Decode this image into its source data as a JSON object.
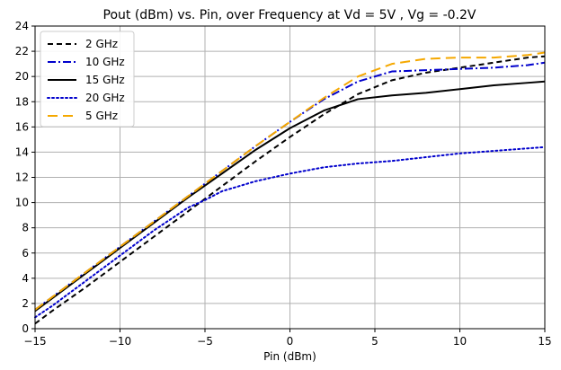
{
  "chart_data": {
    "type": "line",
    "title": "Pout (dBm) vs. Pin, over Frequency at Vd = 5V , Vg = -0.2V",
    "xlabel": "Pin (dBm)",
    "ylabel": "",
    "xlim": [
      -15,
      15
    ],
    "ylim": [
      0,
      24
    ],
    "xticks": [
      -15,
      -10,
      -5,
      0,
      5,
      10,
      15
    ],
    "xtick_labels": [
      "−15",
      "−10",
      "−5",
      "0",
      "5",
      "10",
      "15"
    ],
    "yticks": [
      0,
      2,
      4,
      6,
      8,
      10,
      12,
      14,
      16,
      18,
      20,
      22,
      24
    ],
    "ytick_labels": [
      "0",
      "2",
      "4",
      "6",
      "8",
      "10",
      "12",
      "14",
      "16",
      "18",
      "20",
      "22",
      "24"
    ],
    "grid": true,
    "legend_position": "top-left",
    "series": [
      {
        "name": "2 GHz",
        "color": "#000000",
        "style": "dashed",
        "x": [
          -15,
          -14,
          -12,
          -10,
          -8,
          -6,
          -4,
          -2,
          0,
          2,
          4,
          6,
          8,
          10,
          12,
          14,
          15
        ],
        "y": [
          0.4,
          1.4,
          3.3,
          5.3,
          7.3,
          9.3,
          11.3,
          13.3,
          15.2,
          17.0,
          18.6,
          19.7,
          20.3,
          20.7,
          21.1,
          21.5,
          21.6
        ]
      },
      {
        "name": "10 GHz",
        "color": "#0000cc",
        "style": "dashdot",
        "x": [
          -15,
          -14,
          -12,
          -10,
          -8,
          -6,
          -4,
          -2,
          0,
          2,
          4,
          6,
          8,
          10,
          12,
          14,
          15
        ],
        "y": [
          1.5,
          2.5,
          4.5,
          6.5,
          8.5,
          10.5,
          12.5,
          14.5,
          16.4,
          18.2,
          19.6,
          20.4,
          20.5,
          20.6,
          20.7,
          20.9,
          21.1
        ]
      },
      {
        "name": "15 GHz",
        "color": "#000000",
        "style": "solid",
        "x": [
          -15,
          -14,
          -12,
          -10,
          -8,
          -6,
          -4,
          -2,
          0,
          2,
          4,
          6,
          8,
          10,
          12,
          14,
          15
        ],
        "y": [
          1.4,
          2.4,
          4.4,
          6.4,
          8.4,
          10.4,
          12.3,
          14.2,
          15.9,
          17.3,
          18.2,
          18.5,
          18.7,
          19.0,
          19.3,
          19.5,
          19.6
        ]
      },
      {
        "name": "20 GHz",
        "color": "#0000cc",
        "style": "dotted",
        "x": [
          -15,
          -14,
          -12,
          -10,
          -8,
          -6,
          -5,
          -4,
          -2,
          0,
          2,
          4,
          6,
          8,
          10,
          12,
          14,
          15
        ],
        "y": [
          0.9,
          1.8,
          3.8,
          5.8,
          7.8,
          9.6,
          10.2,
          10.9,
          11.7,
          12.3,
          12.8,
          13.1,
          13.3,
          13.6,
          13.9,
          14.1,
          14.3,
          14.4
        ]
      },
      {
        "name": "5 GHz",
        "color": "#f5a800",
        "style": "longdash",
        "x": [
          -15,
          -14,
          -12,
          -10,
          -8,
          -6,
          -4,
          -2,
          0,
          2,
          4,
          6,
          8,
          10,
          12,
          14,
          15
        ],
        "y": [
          1.5,
          2.5,
          4.5,
          6.5,
          8.5,
          10.5,
          12.5,
          14.5,
          16.4,
          18.3,
          20.0,
          21.0,
          21.4,
          21.5,
          21.5,
          21.7,
          21.9
        ]
      }
    ]
  }
}
